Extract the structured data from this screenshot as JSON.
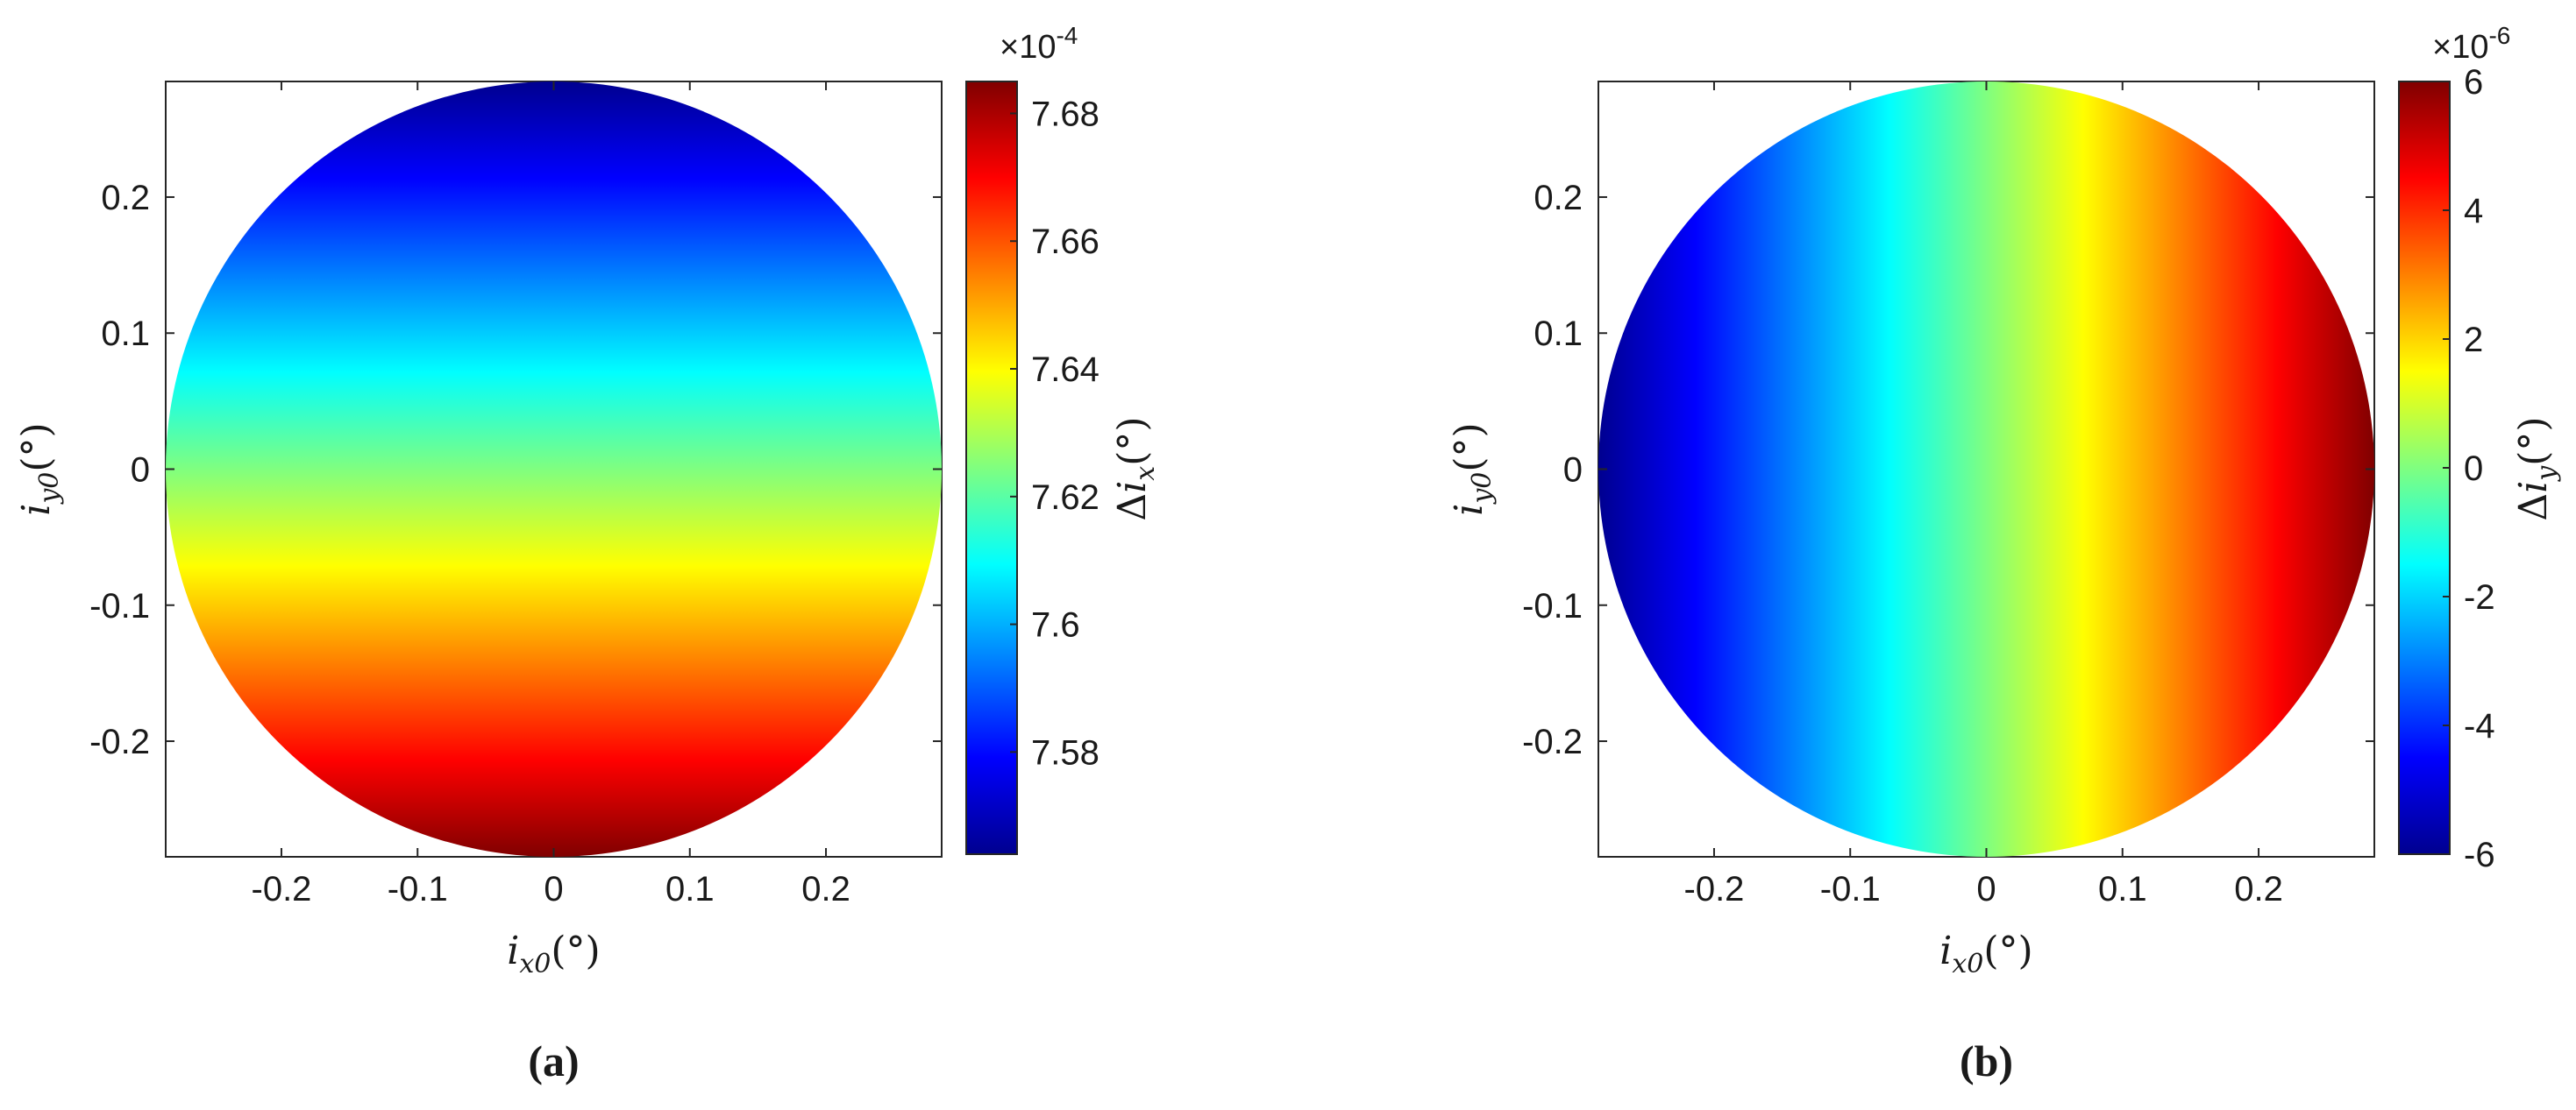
{
  "chart_data": [
    {
      "type": "heatmap",
      "panel_label": "(a)",
      "xlabel": "i_x0(°)",
      "ylabel": "i_y0(°)",
      "xlim": [
        -0.285,
        0.285
      ],
      "ylim": [
        -0.285,
        0.285
      ],
      "x_ticks": [
        -0.2,
        -0.1,
        0,
        0.1,
        0.2
      ],
      "x_tick_labels": [
        "-0.2",
        "-0.1",
        "0",
        "0.1",
        "0.2"
      ],
      "y_ticks": [
        0.2,
        0.1,
        0,
        -0.1,
        -0.2
      ],
      "y_tick_labels": [
        "0.2",
        "0.1",
        "0",
        "-0.1",
        "-0.2"
      ],
      "domain_shape": "disk",
      "domain_radius": 0.285,
      "gradient_direction": "y",
      "field_at_min_coord": 7.685,
      "field_at_max_coord": 7.564,
      "colormap": "jet",
      "colorbar": {
        "label": "Δi_x(°)",
        "exponent": "×10^-4",
        "range": [
          7.564,
          7.685
        ],
        "ticks": [
          7.58,
          7.6,
          7.62,
          7.64,
          7.66,
          7.68
        ],
        "tick_labels": [
          "7.58",
          "7.6",
          "7.62",
          "7.64",
          "7.66",
          "7.68"
        ]
      },
      "grid": false,
      "legend": "none"
    },
    {
      "type": "heatmap",
      "panel_label": "(b)",
      "xlabel": "i_x0(°)",
      "ylabel": "i_y0(°)",
      "xlim": [
        -0.285,
        0.285
      ],
      "ylim": [
        -0.285,
        0.285
      ],
      "x_ticks": [
        -0.2,
        -0.1,
        0,
        0.1,
        0.2
      ],
      "x_tick_labels": [
        "-0.2",
        "-0.1",
        "0",
        "0.1",
        "0.2"
      ],
      "y_ticks": [
        0.2,
        0.1,
        0,
        -0.1,
        -0.2
      ],
      "y_tick_labels": [
        "0.2",
        "0.1",
        "0",
        "-0.1",
        "-0.2"
      ],
      "domain_shape": "disk",
      "domain_radius": 0.285,
      "gradient_direction": "x",
      "field_at_min_coord": -6,
      "field_at_max_coord": 6,
      "colormap": "jet",
      "colorbar": {
        "label": "Δi_y(°)",
        "exponent": "×10^-6",
        "range": [
          -6,
          6
        ],
        "ticks": [
          -6,
          -4,
          -2,
          0,
          2,
          4,
          6
        ],
        "tick_labels": [
          "-6",
          "-4",
          "-2",
          "0",
          "2",
          "4",
          "6"
        ]
      },
      "grid": false,
      "legend": "none"
    }
  ]
}
